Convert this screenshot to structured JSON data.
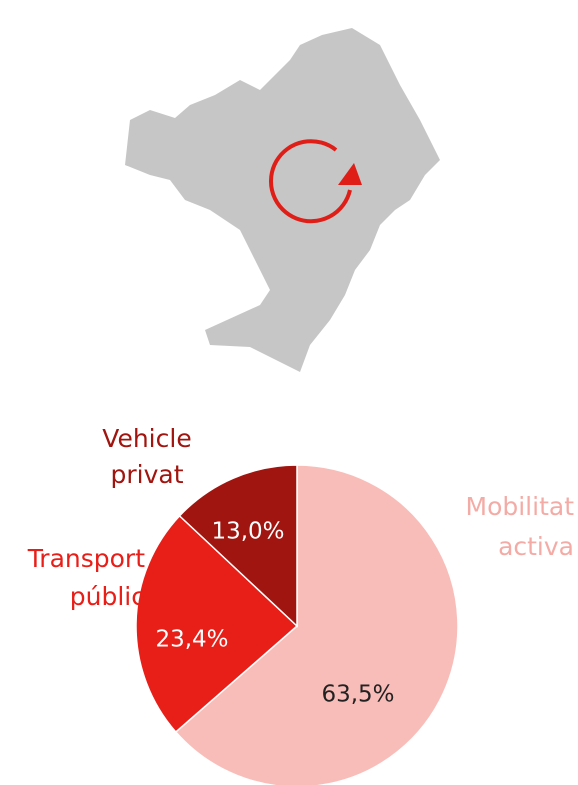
{
  "chart_data": {
    "type": "pie",
    "categories": [
      "Mobilitat activa",
      "Transport públic",
      "Vehicle privat"
    ],
    "values": [
      63.5,
      23.4,
      13.0
    ],
    "value_labels": [
      "63,5%",
      "23,4%",
      "13,0%"
    ],
    "colors": [
      "#f8bdb8",
      "#e81e18",
      "#a0150f"
    ]
  }
}
